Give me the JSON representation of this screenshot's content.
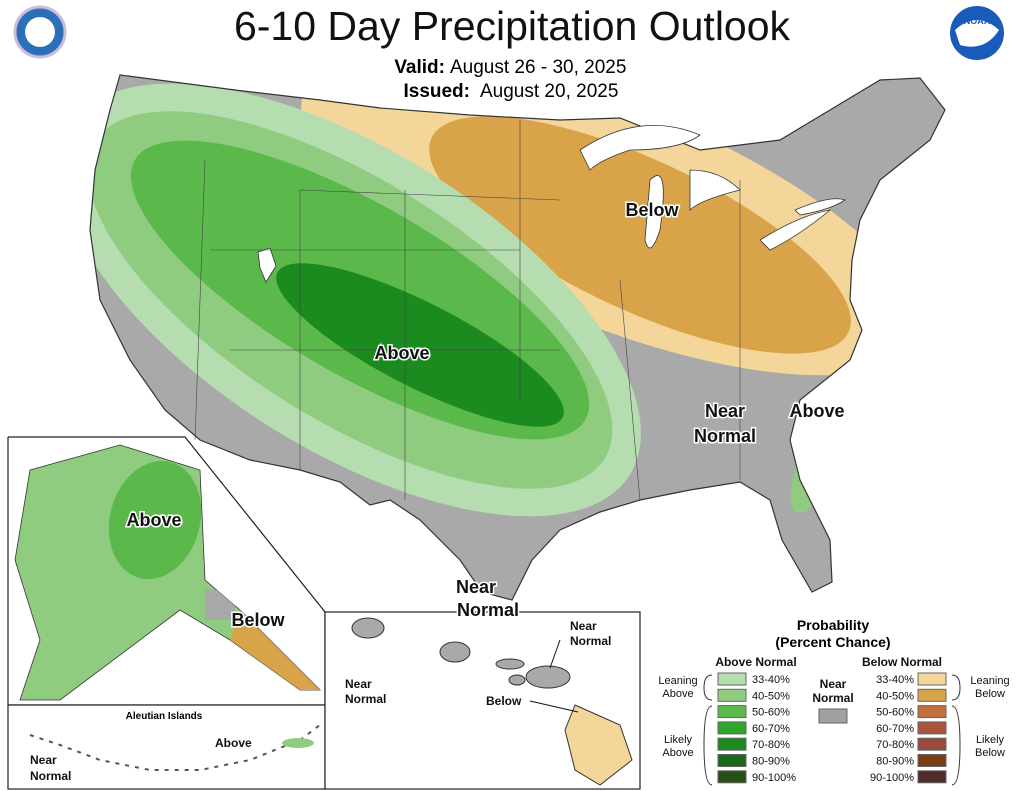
{
  "header": {
    "title": "6-10 Day Precipitation Outlook",
    "valid_label": "Valid:",
    "valid_date": "August 26 - 30, 2025",
    "issued_label": "Issued:",
    "issued_date": "August 20, 2025",
    "logo": "NOAA"
  },
  "map": {
    "conus": {
      "below": "Below",
      "above": "Above",
      "near": [
        "Near",
        "Normal"
      ],
      "above_southeast": "Above",
      "near_gulf": [
        "Near",
        "Normal"
      ]
    },
    "alaska": {
      "above": "Above",
      "below": "Below"
    },
    "aleutian": {
      "title": "Aleutian Islands",
      "near": [
        "Near",
        "Normal"
      ],
      "above": "Above"
    },
    "hawaii": {
      "near_west": [
        "Near",
        "Normal"
      ],
      "near_east": [
        "Near",
        "Normal"
      ],
      "below": "Below"
    }
  },
  "legend": {
    "title": [
      "Probability",
      "(Percent Chance)"
    ],
    "above": {
      "title": "Above Normal",
      "entries": [
        {
          "label": "33-40%",
          "color": "#b5ddb0"
        },
        {
          "label": "40-50%",
          "color": "#90cc80"
        },
        {
          "label": "50-60%",
          "color": "#5bb84a"
        },
        {
          "label": "60-70%",
          "color": "#2fa52c"
        },
        {
          "label": "70-80%",
          "color": "#1b8a1f"
        },
        {
          "label": "80-90%",
          "color": "#1a6a1a"
        },
        {
          "label": "90-100%",
          "color": "#284f14"
        }
      ]
    },
    "below": {
      "title": "Below Normal",
      "entries": [
        {
          "label": "33-40%",
          "color": "#f5d69a"
        },
        {
          "label": "40-50%",
          "color": "#d9a34a"
        },
        {
          "label": "50-60%",
          "color": "#c0703a"
        },
        {
          "label": "60-70%",
          "color": "#a8533a"
        },
        {
          "label": "70-80%",
          "color": "#9a4a3a"
        },
        {
          "label": "80-90%",
          "color": "#7a3c10"
        },
        {
          "label": "90-100%",
          "color": "#4e2c2a"
        }
      ]
    },
    "near": {
      "lines": [
        "Near",
        "Normal"
      ],
      "color": "#a0a0a0"
    },
    "leaning_above": [
      "Leaning",
      "Above"
    ],
    "likely_above": [
      "Likely",
      "Above"
    ],
    "leaning_below": [
      "Leaning",
      "Below"
    ],
    "likely_below": [
      "Likely",
      "Below"
    ]
  }
}
